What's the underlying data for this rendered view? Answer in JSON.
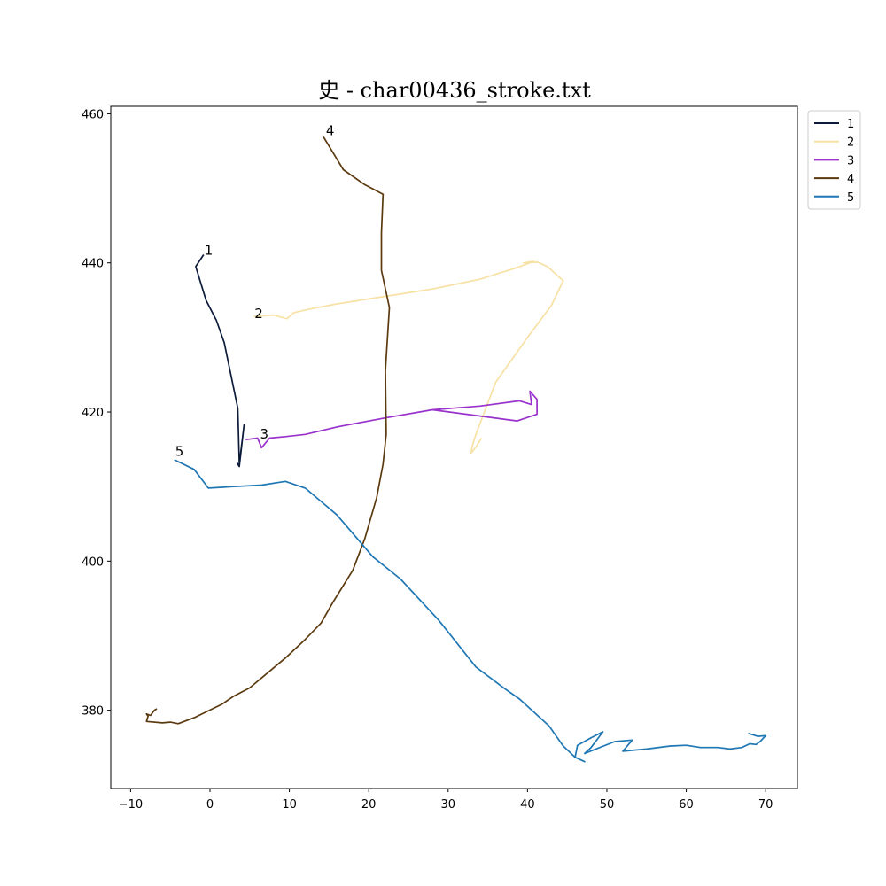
{
  "chart_data": {
    "type": "line",
    "title": "史 - char00436_stroke.txt",
    "xlabel": "",
    "ylabel": "",
    "xlim": [
      -12.5,
      74
    ],
    "ylim": [
      369.5,
      461
    ],
    "x_ticks": [
      -10,
      0,
      10,
      20,
      30,
      40,
      50,
      60,
      70
    ],
    "y_ticks": [
      380,
      400,
      420,
      440,
      460
    ],
    "grid": false,
    "legend_position": "top-right, outside plot",
    "series": [
      {
        "name": "1",
        "color": "#0d1b3a",
        "label_point": [
          -0.8,
          441
        ],
        "points": [
          [
            -0.8,
            441.1
          ],
          [
            -1.8,
            439.5
          ],
          [
            -0.5,
            435
          ],
          [
            0.8,
            432.3
          ],
          [
            1.8,
            429.3
          ],
          [
            3.5,
            420.5
          ],
          [
            3.7,
            413
          ],
          [
            4.3,
            418.3
          ],
          [
            3.7,
            412.7
          ],
          [
            3.4,
            413.2
          ]
        ]
      },
      {
        "name": "2",
        "color": "#f7e1a4",
        "label_point": [
          5.5,
          432.5
        ],
        "points": [
          [
            5.5,
            432.8
          ],
          [
            8,
            433
          ],
          [
            9.7,
            432.5
          ],
          [
            10.5,
            433.3
          ],
          [
            12.5,
            433.8
          ],
          [
            16,
            434.5
          ],
          [
            22,
            435.5
          ],
          [
            28,
            436.5
          ],
          [
            34,
            437.8
          ],
          [
            38.5,
            439.3
          ],
          [
            40.8,
            440.2
          ],
          [
            39.5,
            440
          ],
          [
            41.3,
            440.1
          ],
          [
            42.5,
            439.5
          ],
          [
            44.5,
            437.6
          ],
          [
            43,
            434.3
          ],
          [
            40,
            430
          ],
          [
            36,
            424
          ],
          [
            33.5,
            417
          ],
          [
            33,
            415.3
          ],
          [
            32.9,
            414.5
          ],
          [
            33.5,
            415.3
          ],
          [
            34.2,
            416.5
          ]
        ]
      },
      {
        "name": "3",
        "color": "#9932cc",
        "label_point": [
          6.2,
          416.3
        ],
        "points": [
          [
            4.5,
            416.3
          ],
          [
            6,
            416.5
          ],
          [
            6.5,
            415.2
          ],
          [
            7.5,
            416.5
          ],
          [
            9.5,
            416.7
          ],
          [
            12,
            417
          ],
          [
            16,
            418
          ],
          [
            22,
            419.2
          ],
          [
            28,
            420.3
          ],
          [
            34,
            420.8
          ],
          [
            39,
            421.5
          ],
          [
            40.5,
            421
          ],
          [
            40.3,
            422.8
          ],
          [
            41.2,
            421.7
          ],
          [
            41.2,
            419.7
          ],
          [
            38.7,
            418.8
          ],
          [
            33,
            419.6
          ],
          [
            28,
            420.3
          ]
        ]
      },
      {
        "name": "4",
        "color": "#5c3a0f",
        "label_point": [
          14.5,
          457
        ],
        "points": [
          [
            14.3,
            456.9
          ],
          [
            16.8,
            452.5
          ],
          [
            19.5,
            450.5
          ],
          [
            21.8,
            449.2
          ],
          [
            21.6,
            444
          ],
          [
            21.6,
            439
          ],
          [
            22.6,
            434
          ],
          [
            22.3,
            429
          ],
          [
            22.1,
            425.5
          ],
          [
            22.2,
            417
          ],
          [
            21.8,
            413
          ],
          [
            21,
            408.5
          ],
          [
            19.5,
            403
          ],
          [
            18,
            398.8
          ],
          [
            15.5,
            394.5
          ],
          [
            14,
            391.7
          ],
          [
            12,
            389.5
          ],
          [
            9.5,
            387
          ],
          [
            5,
            383
          ],
          [
            3,
            381.9
          ],
          [
            1.5,
            380.8
          ],
          [
            -2,
            379
          ],
          [
            -4,
            378.2
          ],
          [
            -5,
            378.4
          ],
          [
            -6,
            378.3
          ],
          [
            -8,
            378.5
          ],
          [
            -7.8,
            379.2
          ],
          [
            -8,
            379.5
          ],
          [
            -7.5,
            379.3
          ],
          [
            -7,
            380
          ],
          [
            -6.7,
            380.2
          ]
        ]
      },
      {
        "name": "5",
        "color": "#1f77b4",
        "label_point": [
          -4.5,
          414
        ],
        "points": [
          [
            -4.5,
            413.6
          ],
          [
            -2,
            412.3
          ],
          [
            -0.2,
            409.8
          ],
          [
            3,
            410
          ],
          [
            6.5,
            410.2
          ],
          [
            9.5,
            410.7
          ],
          [
            12,
            409.8
          ],
          [
            14,
            408
          ],
          [
            16,
            406.2
          ],
          [
            18,
            403.7
          ],
          [
            20.5,
            400.6
          ],
          [
            24,
            397.6
          ],
          [
            28.8,
            392.1
          ],
          [
            33.5,
            385.8
          ],
          [
            37,
            383
          ],
          [
            39,
            381.5
          ],
          [
            42.7,
            377.9
          ],
          [
            44.5,
            375.2
          ],
          [
            46,
            373.7
          ],
          [
            47.2,
            373.1
          ],
          [
            46,
            373.7
          ],
          [
            46.3,
            375.3
          ],
          [
            47,
            375.7
          ],
          [
            48,
            376.3
          ],
          [
            49.5,
            377.1
          ],
          [
            48,
            375
          ],
          [
            47.2,
            374.2
          ],
          [
            51,
            375.8
          ],
          [
            53.2,
            376
          ],
          [
            52,
            374.5
          ],
          [
            55,
            374.8
          ],
          [
            58,
            375.2
          ],
          [
            60,
            375.3
          ],
          [
            61.8,
            375
          ],
          [
            64,
            375
          ],
          [
            65.5,
            374.8
          ],
          [
            67,
            375
          ],
          [
            68,
            375.5
          ],
          [
            68.8,
            375.4
          ],
          [
            69.3,
            375.8
          ],
          [
            70,
            376.6
          ],
          [
            69,
            376.5
          ],
          [
            67.8,
            376.9
          ]
        ]
      }
    ]
  }
}
